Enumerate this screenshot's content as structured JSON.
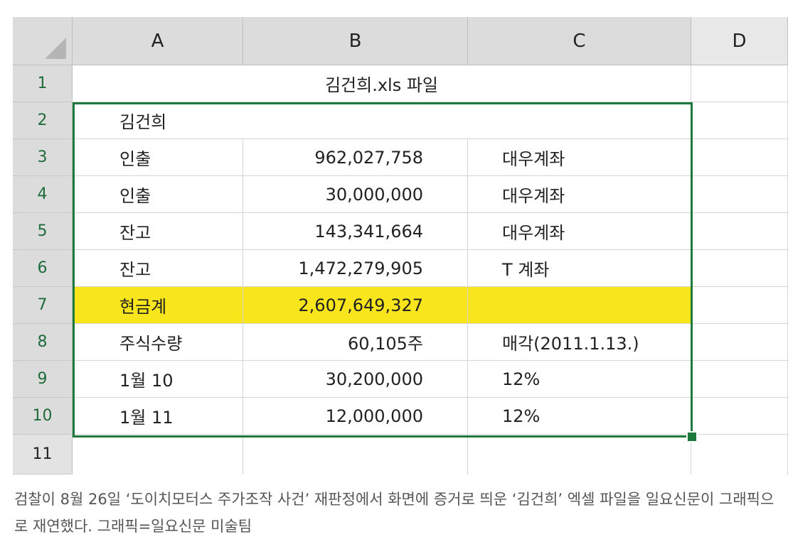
{
  "sheet": {
    "columns": [
      "A",
      "B",
      "C",
      "D"
    ],
    "rows": [
      "1",
      "2",
      "3",
      "4",
      "5",
      "6",
      "7",
      "8",
      "9",
      "10",
      "11"
    ],
    "title_cell": "김건희.xls 파일",
    "cells": {
      "r2": {
        "a": "김건희",
        "b": "",
        "c": ""
      },
      "r3": {
        "a": "인출",
        "b": "962,027,758",
        "c": "대우계좌"
      },
      "r4": {
        "a": "인출",
        "b": "30,000,000",
        "c": "대우계좌"
      },
      "r5": {
        "a": "잔고",
        "b": "143,341,664",
        "c": "대우계좌"
      },
      "r6": {
        "a": "잔고",
        "b": "1,472,279,905",
        "c": "T 계좌"
      },
      "r7": {
        "a": "현금계",
        "b": "2,607,649,327",
        "c": ""
      },
      "r8": {
        "a": "주식수량",
        "b": "60,105주",
        "c": "매각(2011.1.13.)"
      },
      "r9": {
        "a": "1월 10",
        "b": "30,200,000",
        "c": "12%"
      },
      "r10": {
        "a": "1월 11",
        "b": "12,000,000",
        "c": "12%"
      }
    },
    "highlight_color": "#f9e51c",
    "selection_color": "#1e7a3c"
  },
  "caption": "검찰이 8월 26일 ‘도이치모터스 주가조작 사건’ 재판정에서 화면에 증거로 띄운 ‘김건희’ 엑셀 파일을 일요신문이 그래픽으로 재연했다. 그래픽=일요신문 미술팀"
}
